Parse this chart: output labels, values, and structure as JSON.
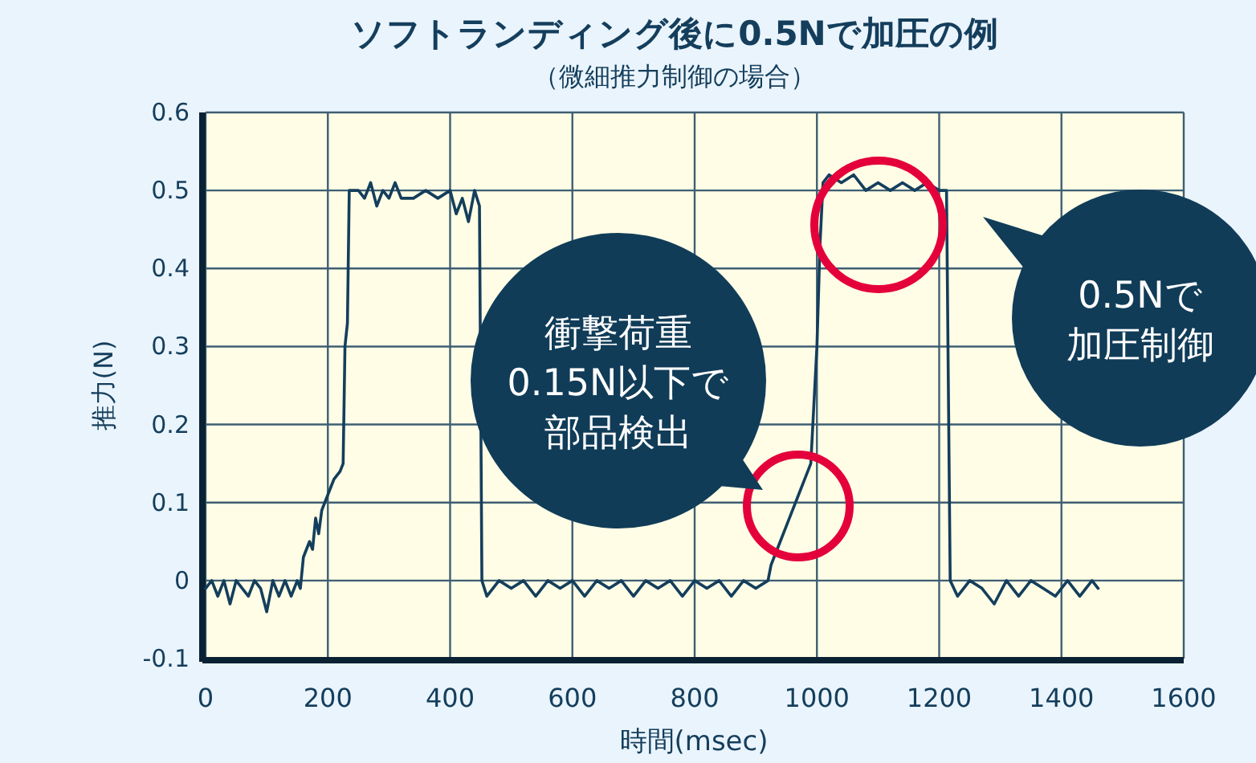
{
  "chart_data": {
    "type": "line",
    "title": "ソフトランディング後に0.5Nで加圧の例",
    "subtitle": "（微細推力制御の場合）",
    "xlabel": "時間(msec)",
    "ylabel": "推力(N)",
    "xlim": [
      0,
      1600
    ],
    "xticks": [
      0,
      200,
      400,
      600,
      800,
      1000,
      1200,
      1400,
      1600
    ],
    "ylim": [
      -0.1,
      0.6
    ],
    "yticks": [
      -0.1,
      0,
      0.1,
      0.2,
      0.3,
      0.4,
      0.5,
      0.6
    ],
    "grid": true,
    "marker": "none",
    "line_style": "solid",
    "series": [
      {
        "color": "#143e5c",
        "x": [
          0,
          10,
          20,
          30,
          40,
          50,
          60,
          70,
          80,
          90,
          100,
          110,
          120,
          130,
          140,
          150,
          155,
          160,
          170,
          175,
          180,
          185,
          190,
          200,
          205,
          210,
          220,
          225,
          228,
          232,
          235,
          250,
          260,
          270,
          280,
          290,
          300,
          310,
          320,
          340,
          360,
          380,
          400,
          410,
          420,
          430,
          440,
          448,
          452,
          460,
          480,
          500,
          520,
          540,
          560,
          580,
          600,
          620,
          640,
          660,
          680,
          700,
          720,
          740,
          760,
          780,
          800,
          820,
          840,
          860,
          880,
          900,
          920,
          925,
          935,
          940,
          950,
          960,
          970,
          980,
          990,
          1000,
          1005,
          1010,
          1020,
          1040,
          1060,
          1080,
          1100,
          1120,
          1140,
          1160,
          1180,
          1200,
          1212,
          1218,
          1230,
          1250,
          1270,
          1290,
          1310,
          1330,
          1350,
          1370,
          1390,
          1410,
          1430,
          1450,
          1460
        ],
        "values": [
          -0.01,
          0.0,
          -0.02,
          0.0,
          -0.03,
          0.0,
          -0.01,
          -0.02,
          0.0,
          -0.01,
          -0.04,
          0.0,
          -0.02,
          0.0,
          -0.02,
          0.0,
          -0.01,
          0.03,
          0.05,
          0.04,
          0.08,
          0.06,
          0.09,
          0.11,
          0.12,
          0.13,
          0.14,
          0.15,
          0.3,
          0.33,
          0.5,
          0.5,
          0.49,
          0.51,
          0.48,
          0.5,
          0.49,
          0.51,
          0.49,
          0.49,
          0.5,
          0.49,
          0.5,
          0.47,
          0.49,
          0.46,
          0.5,
          0.48,
          0.0,
          -0.02,
          0.0,
          -0.01,
          0.0,
          -0.02,
          0.0,
          -0.01,
          0.0,
          -0.02,
          0.0,
          -0.01,
          0.0,
          -0.02,
          0.0,
          -0.01,
          0.0,
          -0.02,
          0.0,
          -0.01,
          0.0,
          -0.02,
          0.0,
          -0.01,
          0.0,
          0.02,
          0.04,
          0.05,
          0.07,
          0.09,
          0.11,
          0.13,
          0.15,
          0.3,
          0.43,
          0.51,
          0.52,
          0.51,
          0.52,
          0.5,
          0.51,
          0.5,
          0.51,
          0.5,
          0.51,
          0.5,
          0.5,
          0.0,
          -0.02,
          0.0,
          -0.01,
          -0.03,
          0.0,
          -0.02,
          0.0,
          -0.01,
          -0.02,
          0.0,
          -0.02,
          0.0,
          -0.01
        ]
      }
    ],
    "annotations": [
      "衝撃荷重",
      "0.15N以下で",
      "部品検出",
      "0.5Nで",
      "加圧制御"
    ]
  }
}
